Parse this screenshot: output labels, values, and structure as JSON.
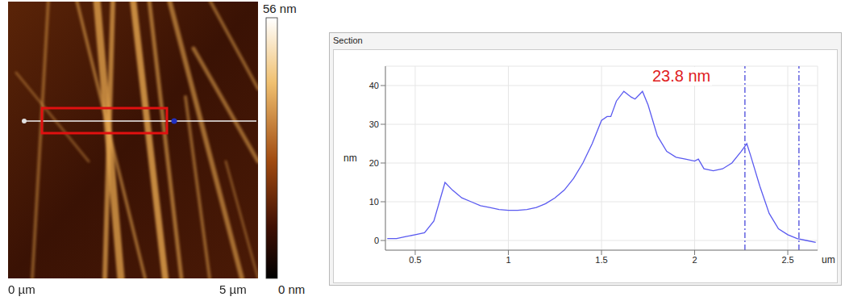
{
  "image": {
    "colorbar_labels": [
      "56 nm",
      "0 nm"
    ],
    "x_axis_labels": [
      "0 µm",
      "5 µm"
    ]
  },
  "chart_data": {
    "type": "line",
    "title": "Section",
    "x_label": "um",
    "y_label": "nm",
    "x": [
      0.35,
      0.4,
      0.45,
      0.5,
      0.55,
      0.6,
      0.63,
      0.66,
      0.7,
      0.75,
      0.8,
      0.85,
      0.9,
      0.95,
      1.0,
      1.05,
      1.1,
      1.15,
      1.2,
      1.25,
      1.3,
      1.35,
      1.4,
      1.45,
      1.5,
      1.53,
      1.55,
      1.58,
      1.62,
      1.66,
      1.68,
      1.72,
      1.75,
      1.8,
      1.85,
      1.9,
      1.95,
      2.0,
      2.02,
      2.05,
      2.1,
      2.15,
      2.2,
      2.25,
      2.28,
      2.3,
      2.35,
      2.4,
      2.45,
      2.5,
      2.55,
      2.6,
      2.65
    ],
    "values": [
      0.5,
      0.5,
      1,
      1.5,
      2,
      5,
      10,
      15,
      13,
      11,
      10,
      9,
      8.5,
      8,
      7.8,
      7.8,
      8,
      8.5,
      9.5,
      11,
      13,
      16,
      20,
      25,
      31,
      32,
      32,
      36,
      38.5,
      37,
      36.5,
      38.5,
      35,
      27,
      23,
      21.5,
      21,
      20.5,
      21,
      18.5,
      18,
      18.5,
      20,
      23,
      25,
      22,
      14,
      7,
      3,
      1.5,
      0.5,
      0,
      -0.5
    ],
    "color": "#5a5af0",
    "xlim": [
      0.34,
      2.66
    ],
    "ylim": [
      -2.5,
      45
    ],
    "xticks": [
      0.5,
      1,
      1.5,
      2,
      2.5
    ],
    "yticks": [
      0,
      10,
      20,
      30,
      40
    ],
    "grid": true,
    "reference_lines": [
      2.27,
      2.56
    ],
    "annotations": [
      {
        "text": "23.8 nm",
        "color": "#e02020"
      }
    ]
  }
}
